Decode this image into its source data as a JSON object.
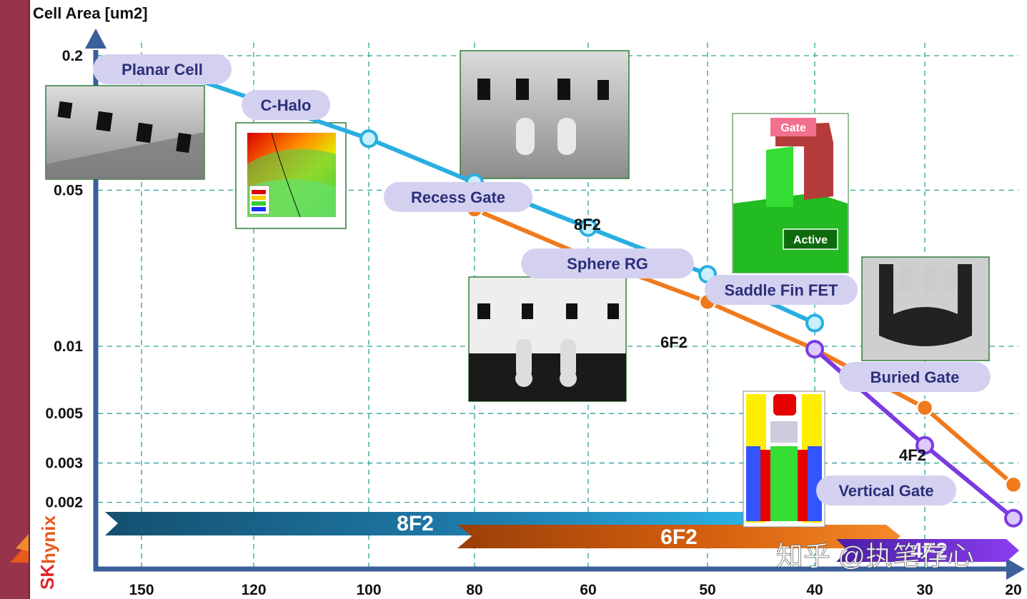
{
  "brand": {
    "sk": "SK",
    "hynix": "hynix"
  },
  "watermark": "知乎 @执笔存心",
  "chart_data": {
    "type": "line",
    "ylabel": "Cell Area [um2]",
    "xlabel": "",
    "yscale": "log",
    "x_reversed": true,
    "x_ticks": [
      150,
      120,
      100,
      80,
      60,
      50,
      40,
      30,
      20
    ],
    "y_ticks": [
      {
        "value": 0.2,
        "label": "0.2"
      },
      {
        "value": 0.05,
        "label": "0.05"
      },
      {
        "value": 0.01,
        "label": "0.01"
      },
      {
        "value": 0.005,
        "label": "0.005"
      },
      {
        "value": 0.003,
        "label": "0.003"
      },
      {
        "value": 0.002,
        "label": "0.002"
      }
    ],
    "ylim": [
      0.00125,
      0.22
    ],
    "grid": true,
    "series": [
      {
        "name": "8F2",
        "color": "#29aee0",
        "x": [
          150,
          100,
          80,
          60,
          50,
          40
        ],
        "y": [
          0.19,
          0.085,
          0.054,
          0.034,
          0.021,
          0.0127
        ]
      },
      {
        "name": "6F2",
        "color": "#f07a1c",
        "x": [
          80,
          60,
          50,
          40,
          30,
          20
        ],
        "y": [
          0.041,
          0.025,
          0.0158,
          0.0097,
          0.0053,
          0.0024
        ]
      },
      {
        "name": "4F2",
        "color": "#7a3be0",
        "x": [
          40,
          30,
          20
        ],
        "y": [
          0.0097,
          0.0036,
          0.0017
        ]
      }
    ],
    "technologies": [
      {
        "label": "Planar Cell"
      },
      {
        "label": "C-Halo"
      },
      {
        "label": "Recess Gate"
      },
      {
        "label": "Sphere RG"
      },
      {
        "label": "Saddle Fin FET"
      },
      {
        "label": "Buried Gate"
      },
      {
        "label": "Vertical Gate"
      }
    ],
    "eras": [
      {
        "label": "8F2",
        "x_start": 150,
        "x_end": 40,
        "color": "#1f8fbf"
      },
      {
        "label": "6F2",
        "x_start": 80,
        "x_end": 30,
        "color": "#e06a16"
      },
      {
        "label": "4F2",
        "x_start": 40,
        "x_end": 20,
        "color": "#6a2fe0"
      }
    ],
    "photo_labels": {
      "gate": "Gate",
      "active": "Active"
    }
  }
}
